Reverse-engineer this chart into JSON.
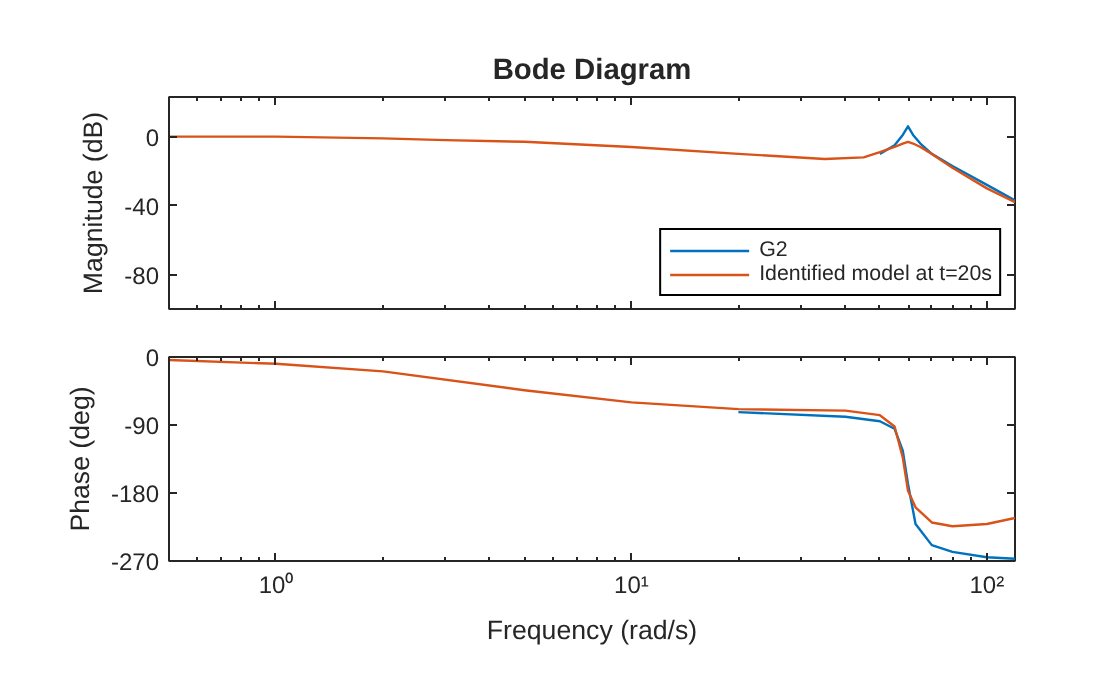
{
  "chart_data": [
    {
      "type": "line",
      "title": "Bode Diagram",
      "ylabel": "Magnitude (dB)",
      "log": "x",
      "xlim": [
        0.5,
        120
      ],
      "xticks": [
        {
          "value": 1,
          "label": null
        },
        {
          "value": 10,
          "label": null
        },
        {
          "value": 100,
          "label": null
        }
      ],
      "ylim": [
        -100,
        23
      ],
      "yticks": [
        0,
        -40,
        -80
      ],
      "tick_labels": "y",
      "grid": false,
      "legend": "bottom right",
      "x": [
        0.5,
        1,
        2,
        3,
        5,
        10,
        20,
        35,
        45,
        50,
        55,
        58,
        60,
        62,
        65,
        70,
        80,
        100,
        120
      ],
      "series": [
        {
          "name": "G2",
          "color": "#0072bd",
          "values": [
            null,
            null,
            null,
            null,
            null,
            null,
            null,
            null,
            null,
            -10,
            -5,
            1,
            6,
            1,
            -4,
            -10,
            -17,
            -28,
            -37
          ]
        },
        {
          "name": "Identified model at t=20s",
          "color": "#d95319",
          "values": [
            0,
            0,
            -1,
            -2,
            -3,
            -6,
            -10,
            -13,
            -12,
            -9,
            -6,
            -4,
            -3,
            -4,
            -6,
            -10,
            -18,
            -30,
            -38
          ]
        }
      ]
    },
    {
      "type": "line",
      "xlabel": "Frequency (rad/s)",
      "ylabel": "Phase (deg)",
      "log": "x",
      "xlim": [
        0.5,
        120
      ],
      "xticks": [
        {
          "value": 1,
          "label": "10⁰"
        },
        {
          "value": 10,
          "label": "10¹"
        },
        {
          "value": 100,
          "label": "10²"
        }
      ],
      "ylim": [
        -270,
        0
      ],
      "yticks": [
        0,
        -90,
        -180,
        -270
      ],
      "grid": false,
      "legend": false,
      "x": [
        0.5,
        1,
        2,
        5,
        10,
        20,
        40,
        50,
        55,
        58,
        60,
        63,
        70,
        80,
        100,
        120
      ],
      "series": [
        {
          "color": "#0072bd",
          "values": [
            null,
            null,
            null,
            null,
            null,
            -73,
            -79,
            -85,
            -95,
            -124,
            -168,
            -221,
            -249,
            -258,
            -265,
            -267
          ]
        },
        {
          "color": "#d95319",
          "values": [
            -4,
            -9,
            -19,
            -44,
            -60,
            -69,
            -71,
            -77,
            -92,
            -133,
            -177,
            -199,
            -219,
            -224,
            -221,
            -213
          ]
        }
      ]
    }
  ]
}
